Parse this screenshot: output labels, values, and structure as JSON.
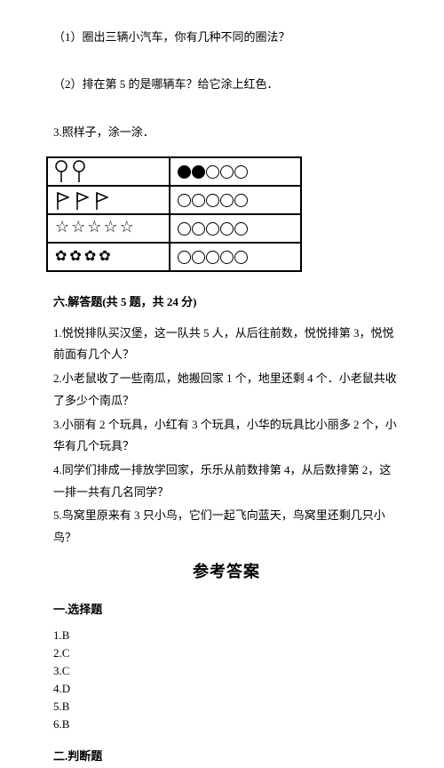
{
  "q1": "（1）圈出三辆小汽车，你有几种不同的圈法？",
  "q2": "（2）排在第 5 的是哪辆车？给它涂上红色．",
  "q3": "3.照样子，涂一涂．",
  "section6": "六.解答题(共 5 题，共 24 分)",
  "wq": {
    "1": "1.悦悦排队买汉堡，这一队共 5 人，从后往前数，悦悦排第 3，悦悦前面有几个人？",
    "2": "2.小老鼠收了一些南瓜，她搬回家 1 个，地里还剩 4 个．小老鼠共收了多少个南瓜？",
    "3": "3.小丽有 2 个玩具，小红有 3 个玩具，小华的玩具比小丽多 2 个，小华有几个玩具？",
    "4": "4.同学们排成一排放学回家，乐乐从前数排第 4，从后数排第 2，这一排一共有几名同学？",
    "5": "5.鸟窝里原来有 3 只小鸟，它们一起飞向蓝天，鸟窝里还剩几只小鸟？"
  },
  "answers_title": "参考答案",
  "choice_head": "一.选择题",
  "choice": {
    "1": "1.B",
    "2": "2.C",
    "3": "3.C",
    "4": "4.D",
    "5": "5.B",
    "6": "6.B"
  },
  "judge_head": "二.判断题",
  "table": {
    "rows": [
      {
        "left_type": "balloon",
        "left_count": 2,
        "filled": 2,
        "open": 3
      },
      {
        "left_type": "flag",
        "left_count": 3,
        "filled": 0,
        "open": 5
      },
      {
        "left_type": "star",
        "left_count": 5,
        "filled": 0,
        "open": 5
      },
      {
        "left_type": "flower",
        "left_count": 4,
        "filled": 0,
        "open": 5
      }
    ]
  }
}
